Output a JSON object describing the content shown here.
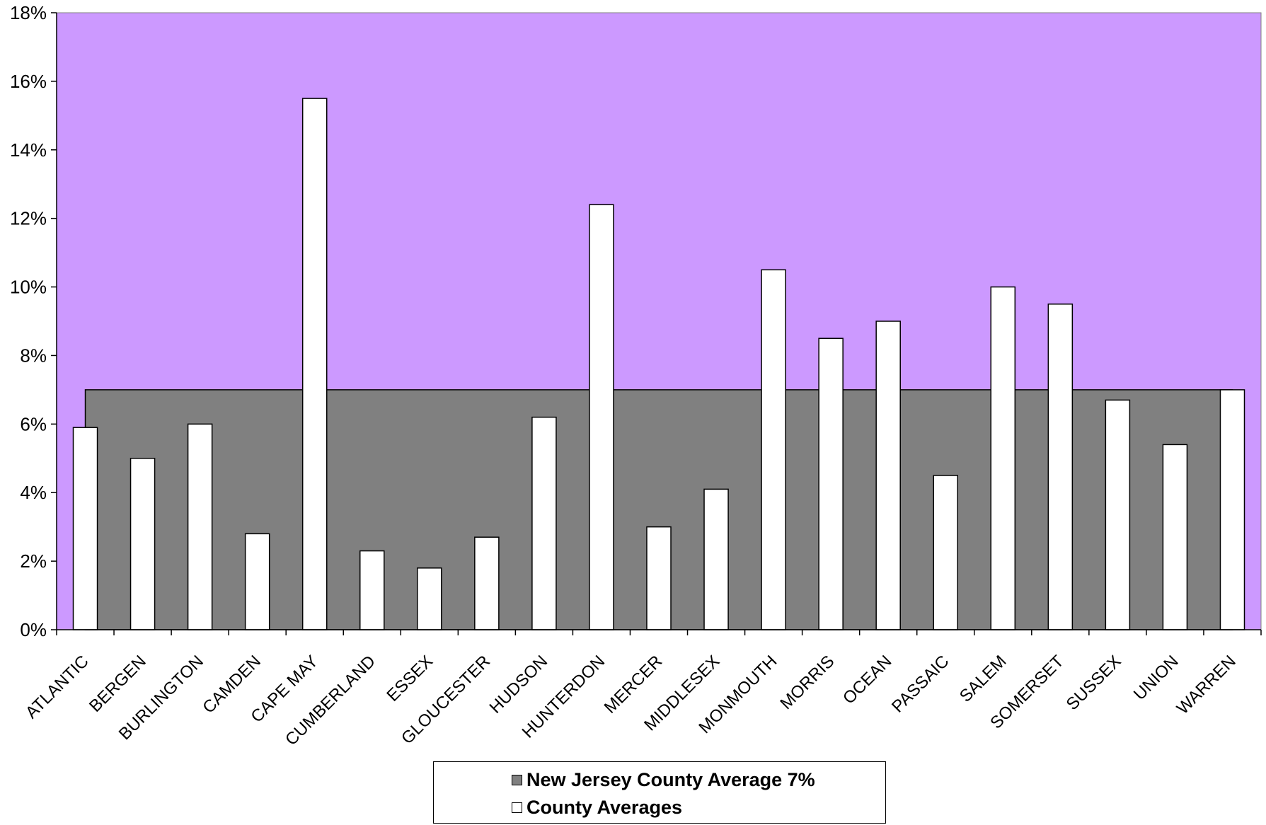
{
  "chart_data": {
    "type": "bar",
    "title": "",
    "xlabel": "",
    "ylabel": "",
    "ylim": [
      0,
      18
    ],
    "y_ticks": [
      "0%",
      "2%",
      "4%",
      "6%",
      "8%",
      "10%",
      "12%",
      "14%",
      "16%",
      "18%"
    ],
    "grid": false,
    "legend_position": "bottom",
    "plot_background": "#cc99ff",
    "categories": [
      "ATLANTIC",
      "BERGEN",
      "BURLINGTON",
      "CAMDEN",
      "CAPE MAY",
      "CUMBERLAND",
      "ESSEX",
      "GLOUCESTER",
      "HUDSON",
      "HUNTERDON",
      "MERCER",
      "MIDDLESEX",
      "MONMOUTH",
      "MORRIS",
      "OCEAN",
      "PASSAIC",
      "SALEM",
      "SOMERSET",
      "SUSSEX",
      "UNION",
      "WARREN"
    ],
    "series": [
      {
        "name": "New Jersey County Average 7%",
        "type": "area",
        "color": "#808080",
        "values": [
          7,
          7,
          7,
          7,
          7,
          7,
          7,
          7,
          7,
          7,
          7,
          7,
          7,
          7,
          7,
          7,
          7,
          7,
          7,
          7,
          7
        ]
      },
      {
        "name": "County Averages",
        "type": "bar",
        "color": "#ffffff",
        "values": [
          5.9,
          5.0,
          6.0,
          2.8,
          15.5,
          2.3,
          1.8,
          2.7,
          6.2,
          12.4,
          3.0,
          4.1,
          10.5,
          8.5,
          9.0,
          4.5,
          10.0,
          9.5,
          6.7,
          5.4,
          7.0
        ]
      }
    ]
  }
}
